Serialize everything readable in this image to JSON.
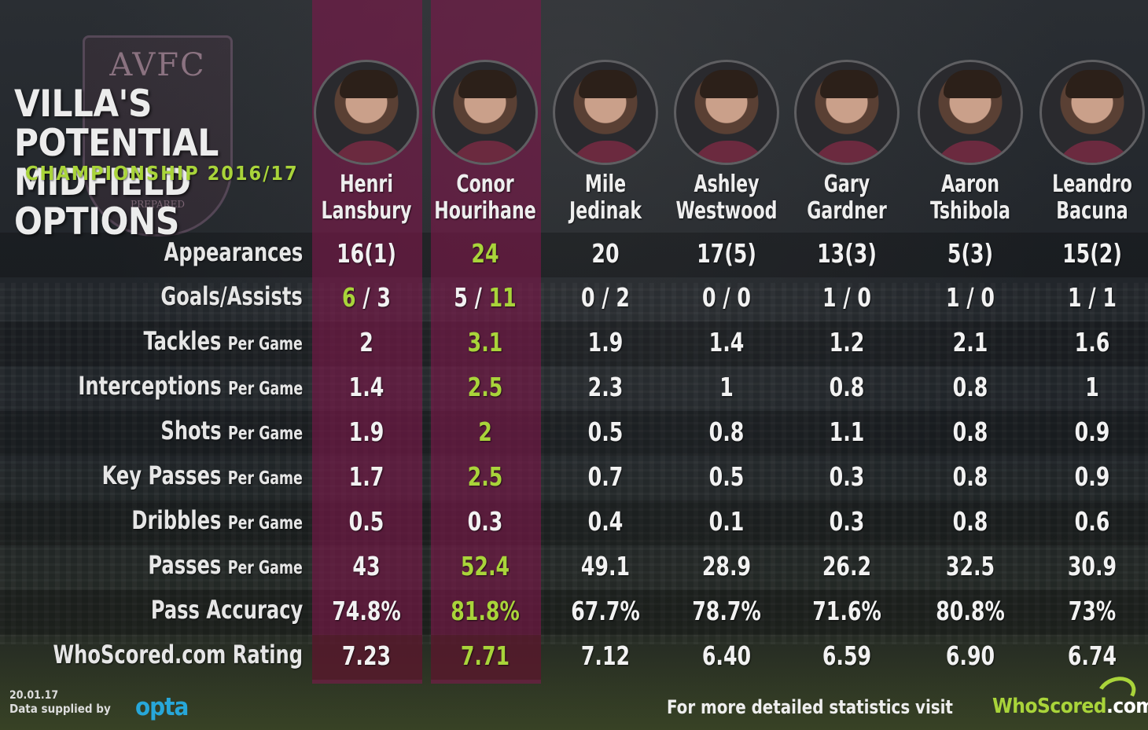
{
  "header": {
    "crest_text": "AVFC",
    "crest_motto": "PREPARED",
    "title_line1": "VILLA'S POTENTIAL",
    "title_line2": "MIDFIELD OPTIONS",
    "subtitle": "CHAMPIONSHIP 2016/17"
  },
  "colors": {
    "highlight_column": "#7d194b",
    "best_value": "#a9d43a",
    "text": "#f2f2f2",
    "opta_blue": "#27a7d9"
  },
  "players": [
    {
      "first": "Henri",
      "last": "Lansbury",
      "highlighted": true
    },
    {
      "first": "Conor",
      "last": "Hourihane",
      "highlighted": true
    },
    {
      "first": "Mile",
      "last": "Jedinak",
      "highlighted": false
    },
    {
      "first": "Ashley",
      "last": "Westwood",
      "highlighted": false
    },
    {
      "first": "Gary",
      "last": "Gardner",
      "highlighted": false
    },
    {
      "first": "Aaron",
      "last": "Tshibola",
      "highlighted": false
    },
    {
      "first": "Leandro",
      "last": "Bacuna",
      "highlighted": false
    }
  ],
  "chart_data": {
    "type": "table",
    "title": "VILLA'S POTENTIAL MIDFIELD OPTIONS",
    "subtitle": "CHAMPIONSHIP 2016/17",
    "columns": [
      "Henri Lansbury",
      "Conor Hourihane",
      "Mile Jedinak",
      "Ashley Westwood",
      "Gary Gardner",
      "Aaron Tshibola",
      "Leandro Bacuna"
    ],
    "rows": [
      {
        "label": "Appearances",
        "suffix": "",
        "values": [
          "16(1)",
          "24",
          "20",
          "17(5)",
          "13(3)",
          "5(3)",
          "15(2)"
        ],
        "highlight": [
          1
        ]
      },
      {
        "label": "Goals/Assists",
        "suffix": "",
        "values": [
          [
            "6",
            "3"
          ],
          [
            "5",
            "11"
          ],
          [
            "0",
            "2"
          ],
          [
            "0",
            "0"
          ],
          [
            "1",
            "0"
          ],
          [
            "1",
            "0"
          ],
          [
            "1",
            "1"
          ]
        ],
        "highlight_goals": [
          0
        ],
        "highlight_assists": [
          1
        ]
      },
      {
        "label": "Tackles",
        "suffix": "Per Game",
        "values": [
          "2",
          "3.1",
          "1.9",
          "1.4",
          "1.2",
          "2.1",
          "1.6"
        ],
        "highlight": [
          1
        ]
      },
      {
        "label": "Interceptions",
        "suffix": "Per Game",
        "values": [
          "1.4",
          "2.5",
          "2.3",
          "1",
          "0.8",
          "0.8",
          "1"
        ],
        "highlight": [
          1
        ]
      },
      {
        "label": "Shots",
        "suffix": "Per Game",
        "values": [
          "1.9",
          "2",
          "0.5",
          "0.8",
          "1.1",
          "0.8",
          "0.9"
        ],
        "highlight": [
          1
        ]
      },
      {
        "label": "Key Passes",
        "suffix": "Per Game",
        "values": [
          "1.7",
          "2.5",
          "0.7",
          "0.5",
          "0.3",
          "0.8",
          "0.9"
        ],
        "highlight": [
          1
        ]
      },
      {
        "label": "Dribbles",
        "suffix": "Per Game",
        "values": [
          "0.5",
          "0.3",
          "0.4",
          "0.1",
          "0.3",
          "0.8",
          "0.6"
        ],
        "highlight": []
      },
      {
        "label": "Passes",
        "suffix": "Per Game",
        "values": [
          "43",
          "52.4",
          "49.1",
          "28.9",
          "26.2",
          "32.5",
          "30.9"
        ],
        "highlight": [
          1
        ]
      },
      {
        "label": "Pass Accuracy",
        "suffix": "",
        "values": [
          "74.8%",
          "81.8%",
          "67.7%",
          "78.7%",
          "71.6%",
          "80.8%",
          "73%"
        ],
        "highlight": [
          1
        ]
      },
      {
        "label": "WhoScored.com Rating",
        "suffix": "",
        "values": [
          "7.23",
          "7.71",
          "7.12",
          "6.40",
          "6.59",
          "6.90",
          "6.74"
        ],
        "highlight": [
          1
        ]
      }
    ]
  },
  "footer": {
    "date": "20.01.17",
    "supplied": "Data supplied by",
    "opta": "opta",
    "visit": "For more detailed statistics visit",
    "logo_who": "WhoScored",
    "logo_dotcom": ".com"
  }
}
